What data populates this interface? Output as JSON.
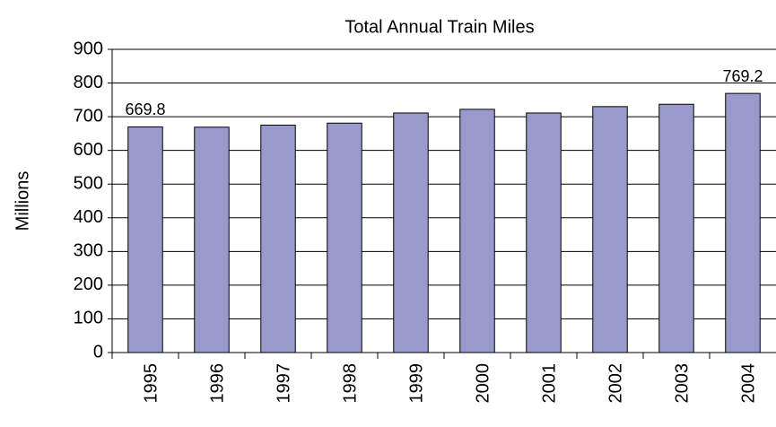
{
  "chart_data": {
    "type": "bar",
    "title": "Total Annual Train Miles",
    "ylabel": "Millions",
    "categories": [
      "1995",
      "1996",
      "1997",
      "1998",
      "1999",
      "2000",
      "2001",
      "2002",
      "2003",
      "2004"
    ],
    "values": [
      669.8,
      669,
      675,
      681,
      711,
      722,
      711,
      730,
      737,
      769.2
    ],
    "value_labels": [
      "669.8",
      null,
      null,
      null,
      null,
      null,
      null,
      null,
      null,
      "769.2"
    ],
    "color": "#9999cc",
    "ylim": [
      0,
      900
    ],
    "yticks": [
      0,
      100,
      200,
      300,
      400,
      500,
      600,
      700,
      800,
      900
    ],
    "grid": true
  }
}
